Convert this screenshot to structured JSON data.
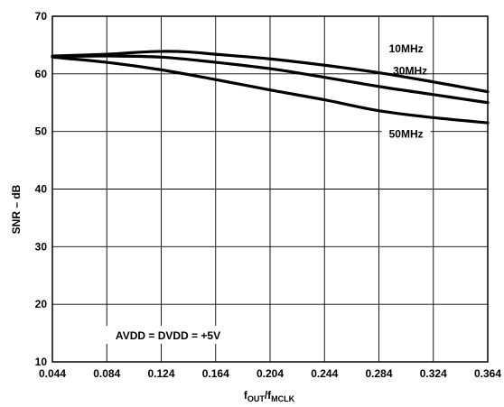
{
  "chart_data": {
    "type": "line",
    "xlabel": "",
    "xlabel_parts": {
      "f1": "f",
      "sub1": "OUT",
      "slash": "/",
      "f2": "f",
      "sub2": "MCLK"
    },
    "ylabel": "SNR – dB",
    "xlim": [
      0.044,
      0.364
    ],
    "ylim": [
      10,
      70
    ],
    "x_ticks": [
      0.044,
      0.084,
      0.124,
      0.164,
      0.204,
      0.244,
      0.284,
      0.324,
      0.364
    ],
    "x_tick_labels": [
      "0.044",
      "0.084",
      "0.124",
      "0.164",
      "0.204",
      "0.244",
      "0.284",
      "0.324",
      "0.364"
    ],
    "y_ticks": [
      10,
      20,
      30,
      40,
      50,
      60,
      70
    ],
    "y_tick_labels": [
      "10",
      "20",
      "30",
      "40",
      "50",
      "60",
      "70"
    ],
    "grid": true,
    "annotation": "AVDD = DVDD = +5V",
    "series": [
      {
        "name": "10MHz",
        "x": [
          0.044,
          0.084,
          0.104,
          0.124,
          0.144,
          0.164,
          0.204,
          0.244,
          0.284,
          0.324,
          0.364
        ],
        "y": [
          63.1,
          63.4,
          63.7,
          63.9,
          63.8,
          63.4,
          62.6,
          61.5,
          60.2,
          58.6,
          56.9
        ]
      },
      {
        "name": "30MHz",
        "x": [
          0.044,
          0.084,
          0.124,
          0.164,
          0.204,
          0.244,
          0.284,
          0.324,
          0.364
        ],
        "y": [
          63.0,
          63.1,
          62.9,
          62.0,
          60.9,
          59.4,
          57.8,
          56.4,
          55.0
        ]
      },
      {
        "name": "50MHz",
        "x": [
          0.044,
          0.084,
          0.124,
          0.164,
          0.204,
          0.244,
          0.284,
          0.324,
          0.364
        ],
        "y": [
          62.9,
          62.0,
          60.7,
          59.0,
          57.2,
          55.5,
          53.6,
          52.4,
          51.5
        ]
      }
    ]
  }
}
